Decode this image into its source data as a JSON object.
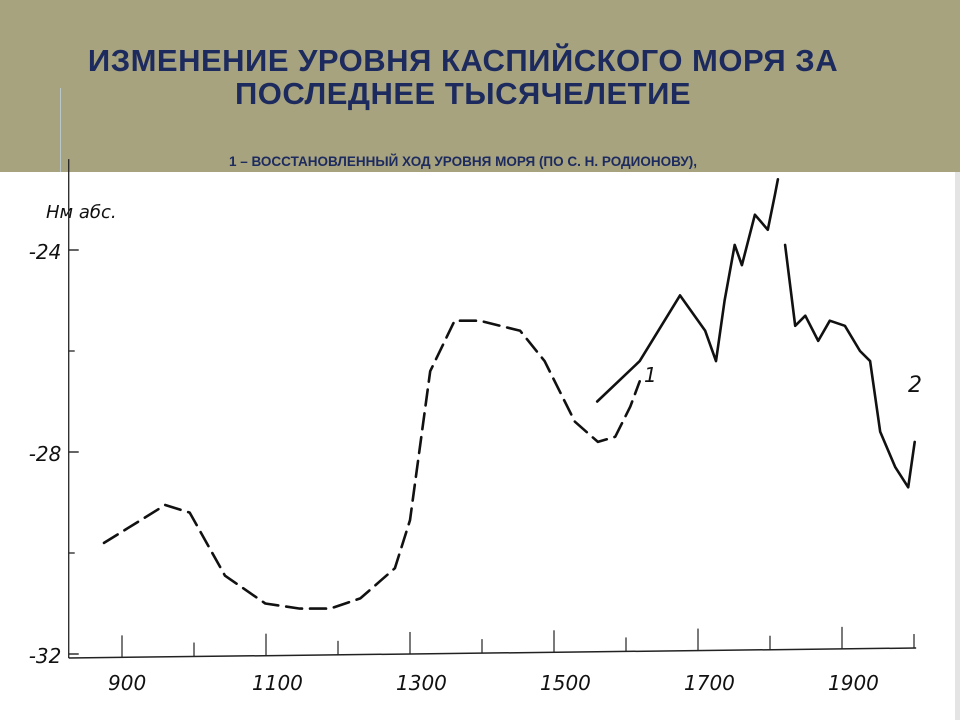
{
  "slide": {
    "title": "ИЗМЕНЕНИЕ УРОВНЯ КАСПИЙСКОГО МОРЯ ЗА ПОСЛЕДНЕЕ ТЫСЯЧЕЛЕТИЕ",
    "subtitle": "1 – ВОССТАНОВЛЕННЫЙ ХОД УРОВНЯ МОРЯ (ПО С. Н. РОДИОНОВУ),",
    "band_color": "#a7a37f",
    "title_color": "#1c2a5e"
  },
  "chart_data": {
    "type": "line",
    "ylabel": "Нм абс.",
    "xlabel": "",
    "xlim": [
      826,
      2003
    ],
    "ylim": [
      -32,
      -22.5
    ],
    "x_ticks": [
      900,
      1100,
      1300,
      1500,
      1700,
      1900
    ],
    "x_tick_labels": [
      "900",
      "1100",
      "1300",
      "1500",
      "1700",
      "1900"
    ],
    "y_ticks": [
      -24,
      -28,
      -32
    ],
    "y_tick_labels": [
      "-24",
      "-28",
      "-32"
    ],
    "grid": false,
    "series": [
      {
        "label": "1",
        "style": "dashed",
        "x": [
          875,
          960,
          994,
          1043,
          1099,
          1147,
          1189,
          1231,
          1279,
          1300,
          1328,
          1362,
          1397,
          1453,
          1487,
          1529,
          1561,
          1585,
          1606,
          1619
        ],
        "y": [
          -29.8,
          -29.05,
          -29.2,
          -30.45,
          -31.0,
          -31.1,
          -31.1,
          -30.9,
          -30.3,
          -29.35,
          -26.4,
          -25.4,
          -25.4,
          -25.6,
          -26.2,
          -27.4,
          -27.8,
          -27.7,
          -27.1,
          -26.6
        ]
      },
      {
        "label": "1",
        "style": "solid",
        "x": [
          1560,
          1619,
          1675,
          1710,
          1725,
          1737,
          1751,
          1761,
          1779,
          1797,
          1807,
          1811
        ],
        "y": [
          -27.0,
          -26.2,
          -24.9,
          -25.6,
          -26.2,
          -25.0,
          -23.9,
          -24.3,
          -23.3,
          -23.6,
          -22.9,
          -22.6
        ]
      },
      {
        "label": "2",
        "style": "solid",
        "x": [
          1821,
          1835,
          1849,
          1867,
          1883,
          1904,
          1925,
          1939,
          1953,
          1974,
          1992,
          2001
        ],
        "y": [
          -23.9,
          -25.5,
          -25.3,
          -25.8,
          -25.4,
          -25.5,
          -26.0,
          -26.2,
          -27.6,
          -28.3,
          -28.7,
          -27.8
        ]
      }
    ]
  }
}
